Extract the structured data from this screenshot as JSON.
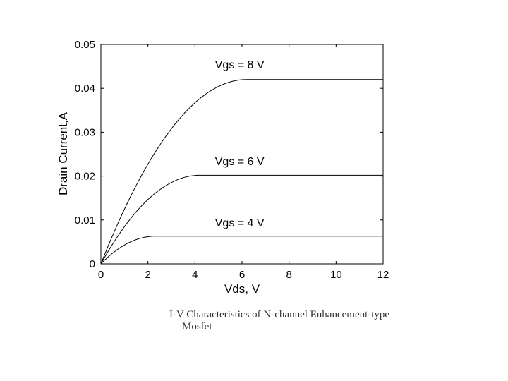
{
  "chart_data": {
    "type": "line",
    "title": "",
    "xlabel": "Vds, V",
    "ylabel": "Drain Current,A",
    "xlim": [
      0,
      12
    ],
    "ylim": [
      0,
      0.05
    ],
    "xticks": [
      0,
      2,
      4,
      6,
      8,
      10,
      12
    ],
    "xtick_labels": [
      "0",
      "2",
      "4",
      "6",
      "8",
      "10",
      "12"
    ],
    "yticks": [
      0,
      0.01,
      0.02,
      0.03,
      0.04,
      0.05
    ],
    "ytick_labels": [
      "0",
      "0.01",
      "0.02",
      "0.03",
      "0.04",
      "0.05"
    ],
    "series": [
      {
        "name": "Vgs = 8 V",
        "label": "Vgs = 8 V",
        "vsat": 6.2,
        "isat": 0.042,
        "label_at": [
          5.9,
          0.0445
        ]
      },
      {
        "name": "Vgs = 6 V",
        "label": "Vgs = 6 V",
        "vsat": 4.2,
        "isat": 0.0202,
        "label_at": [
          5.9,
          0.0225
        ]
      },
      {
        "name": "Vgs = 4 V",
        "label": "Vgs = 4 V",
        "vsat": 2.3,
        "isat": 0.0063,
        "label_at": [
          5.9,
          0.0085
        ]
      }
    ]
  },
  "caption": {
    "line1": "I-V Characteristics of N-channel Enhancement-type",
    "line2": "Mosfet"
  }
}
